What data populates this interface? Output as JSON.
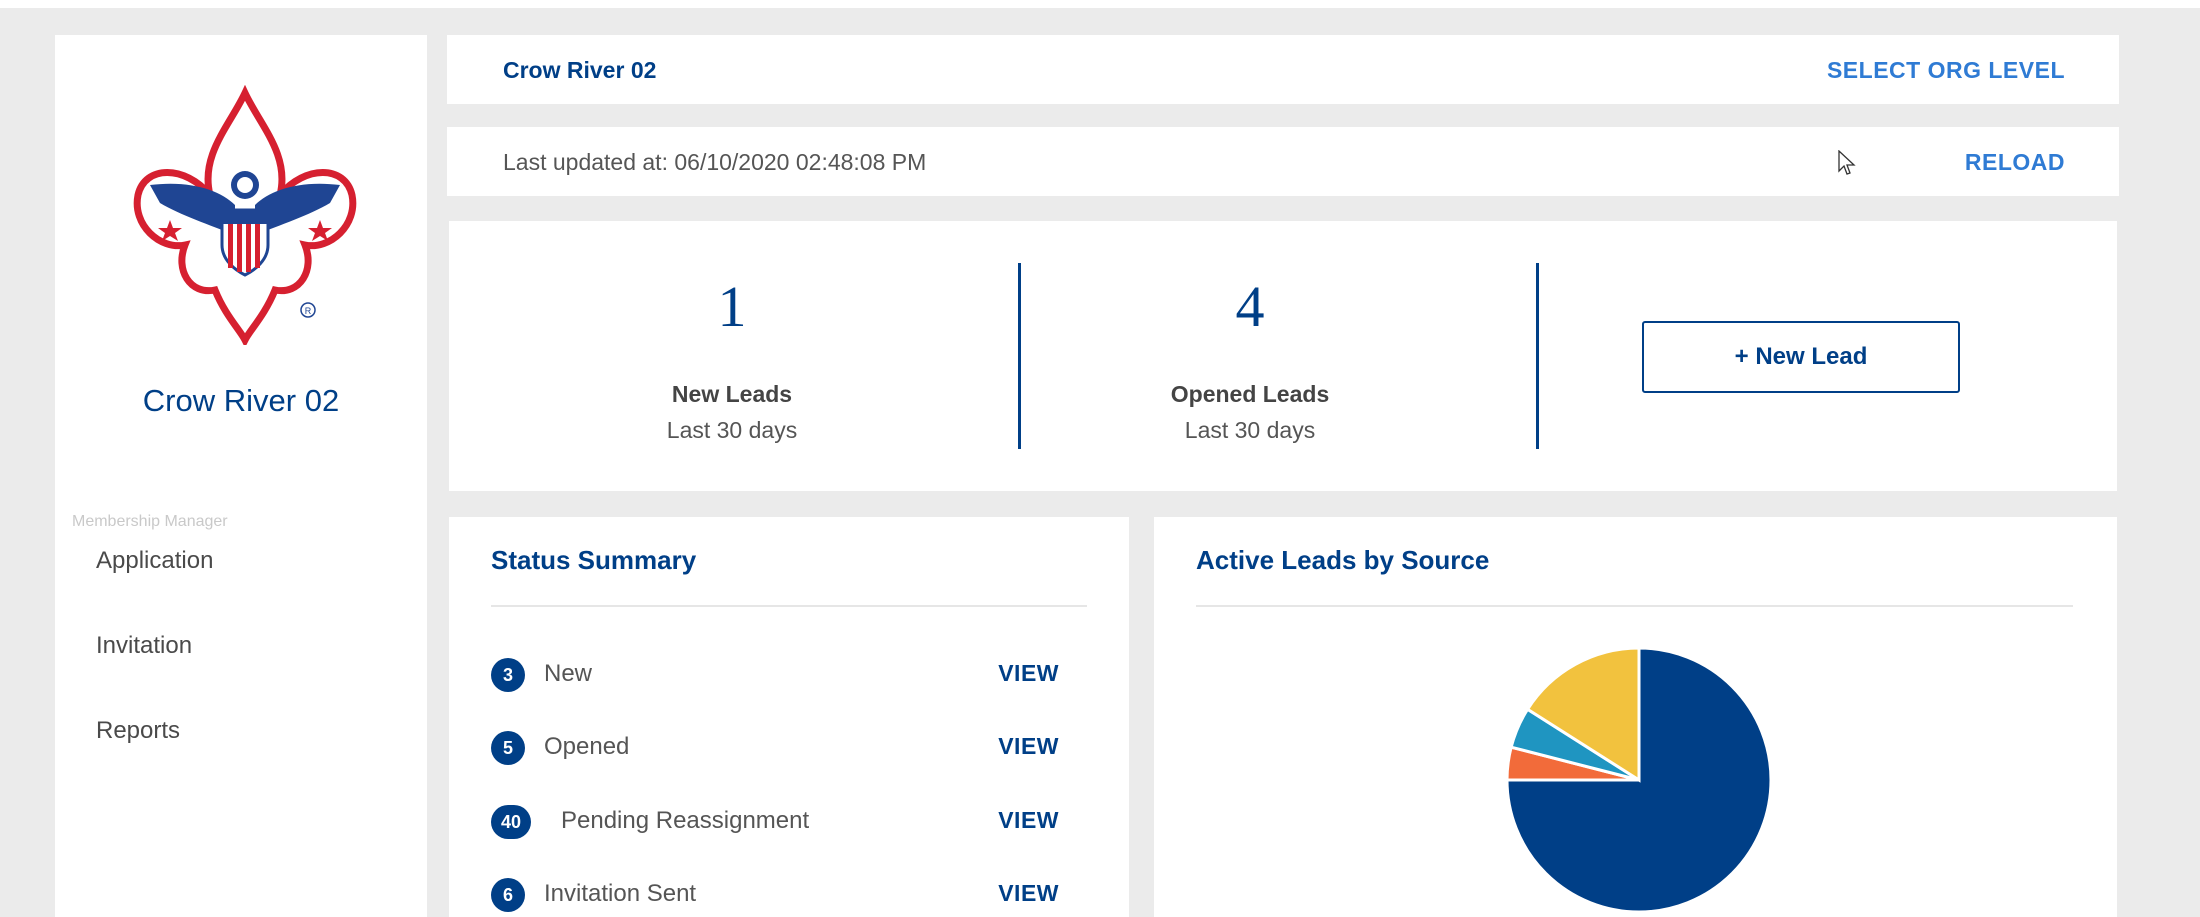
{
  "sidebar": {
    "title": "Crow River 02",
    "section_label": "Membership Manager",
    "items": [
      {
        "label": "Application"
      },
      {
        "label": "Invitation"
      },
      {
        "label": "Reports"
      }
    ]
  },
  "header": {
    "org_name": "Crow River 02",
    "select_org_label": "SELECT ORG LEVEL"
  },
  "update_bar": {
    "last_updated": "Last updated at: 06/10/2020 02:48:08 PM",
    "reload_label": "RELOAD"
  },
  "stats": [
    {
      "value": "1",
      "label": "New Leads",
      "sub": "Last 30 days"
    },
    {
      "value": "4",
      "label": "Opened Leads",
      "sub": "Last 30 days"
    }
  ],
  "new_lead_button": "+ New Lead",
  "status_summary": {
    "title": "Status Summary",
    "view_label": "VIEW",
    "rows": [
      {
        "count": "3",
        "label": "New"
      },
      {
        "count": "5",
        "label": "Opened"
      },
      {
        "count": "40",
        "label": "Pending Reassignment"
      },
      {
        "count": "6",
        "label": "Invitation Sent"
      }
    ]
  },
  "active_leads": {
    "title": "Active Leads by Source",
    "pie_slices": [
      {
        "value": 75,
        "color": "#003f87"
      },
      {
        "value": 4,
        "color": "#f26b3a"
      },
      {
        "value": 5,
        "color": "#1f95c1"
      },
      {
        "value": 16,
        "color": "#f2c23e"
      }
    ]
  },
  "colors": {
    "brand_navy": "#003f87",
    "link_blue": "#2f7bd4",
    "logo_red": "#d62030"
  },
  "icons": [
    "bsa-logo-icon",
    "mouse-cursor-icon"
  ]
}
